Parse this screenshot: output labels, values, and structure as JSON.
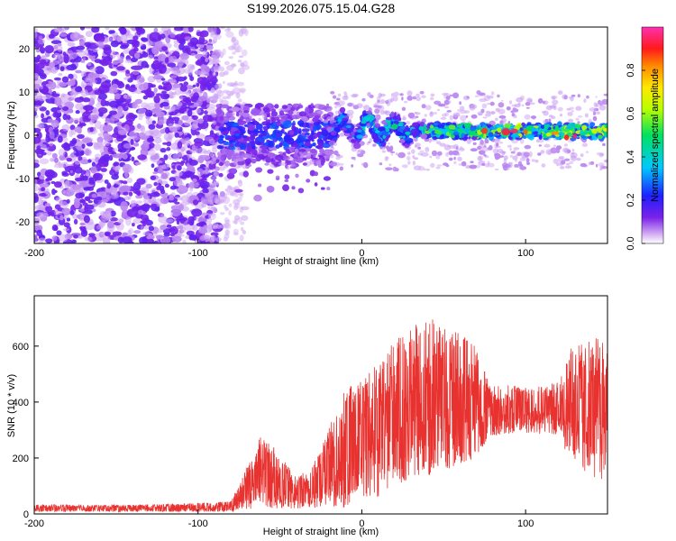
{
  "figure": {
    "title": "S199.2026.075.15.04.G28"
  },
  "chart_data": [
    {
      "type": "heatmap",
      "name": "spectrogram",
      "xlabel": "Height of straight line (km)",
      "ylabel": "Frequency (Hz)",
      "xlim": [
        -200,
        150
      ],
      "ylim": [
        -25,
        25
      ],
      "xticks": [
        -200,
        -100,
        0,
        100
      ],
      "yticks": [
        -20,
        -10,
        0,
        10,
        20
      ],
      "colorbar": {
        "label": "Normalized spectral amplitude",
        "range": [
          0,
          1
        ],
        "ticks": [
          "0.0",
          "0.2",
          "0.4",
          "0.6",
          "0.8"
        ],
        "colormap": "rainbow (violet to red to magenta)"
      },
      "regions": [
        {
          "x_range": [
            -200,
            -90
          ],
          "freq_range": [
            -25,
            25
          ],
          "amplitude": 0.05,
          "description": "broadband noise"
        },
        {
          "x_range": [
            -90,
            -20
          ],
          "freq_range": [
            -12,
            8
          ],
          "amplitude": 0.1,
          "description": "onset of signal near 0 Hz"
        },
        {
          "x_range": [
            -20,
            150
          ],
          "freq_center": 1,
          "amplitude_peak": 0.95,
          "description": "narrow band near 0-3 Hz"
        }
      ]
    },
    {
      "type": "line",
      "name": "snr",
      "xlabel": "Height of straight line (km)",
      "ylabel": "SNR (10 * v/v)",
      "xlim": [
        -200,
        150
      ],
      "ylim": [
        0,
        780
      ],
      "xticks": [
        -200,
        -100,
        0,
        100
      ],
      "yticks": [
        0,
        200,
        400,
        600
      ],
      "color": "#e8322f",
      "envelope": [
        {
          "x": -200,
          "low": 8,
          "high": 35
        },
        {
          "x": -160,
          "low": 8,
          "high": 32
        },
        {
          "x": -120,
          "low": 8,
          "high": 35
        },
        {
          "x": -80,
          "low": 8,
          "high": 45
        },
        {
          "x": -62,
          "low": 20,
          "high": 280
        },
        {
          "x": -50,
          "low": 20,
          "high": 220
        },
        {
          "x": -40,
          "low": 20,
          "high": 130
        },
        {
          "x": -30,
          "low": 20,
          "high": 170
        },
        {
          "x": -22,
          "low": 20,
          "high": 280
        },
        {
          "x": -10,
          "low": 20,
          "high": 450
        },
        {
          "x": 0,
          "low": 60,
          "high": 480
        },
        {
          "x": 10,
          "low": 60,
          "high": 560
        },
        {
          "x": 20,
          "low": 100,
          "high": 620
        },
        {
          "x": 30,
          "low": 120,
          "high": 680
        },
        {
          "x": 40,
          "low": 130,
          "high": 700
        },
        {
          "x": 50,
          "low": 150,
          "high": 690
        },
        {
          "x": 60,
          "low": 170,
          "high": 650
        },
        {
          "x": 70,
          "low": 200,
          "high": 600
        },
        {
          "x": 78,
          "low": 280,
          "high": 460
        },
        {
          "x": 100,
          "low": 290,
          "high": 460
        },
        {
          "x": 120,
          "low": 280,
          "high": 470
        },
        {
          "x": 128,
          "low": 180,
          "high": 600
        },
        {
          "x": 140,
          "low": 130,
          "high": 620
        },
        {
          "x": 150,
          "low": 110,
          "high": 650
        }
      ]
    }
  ]
}
